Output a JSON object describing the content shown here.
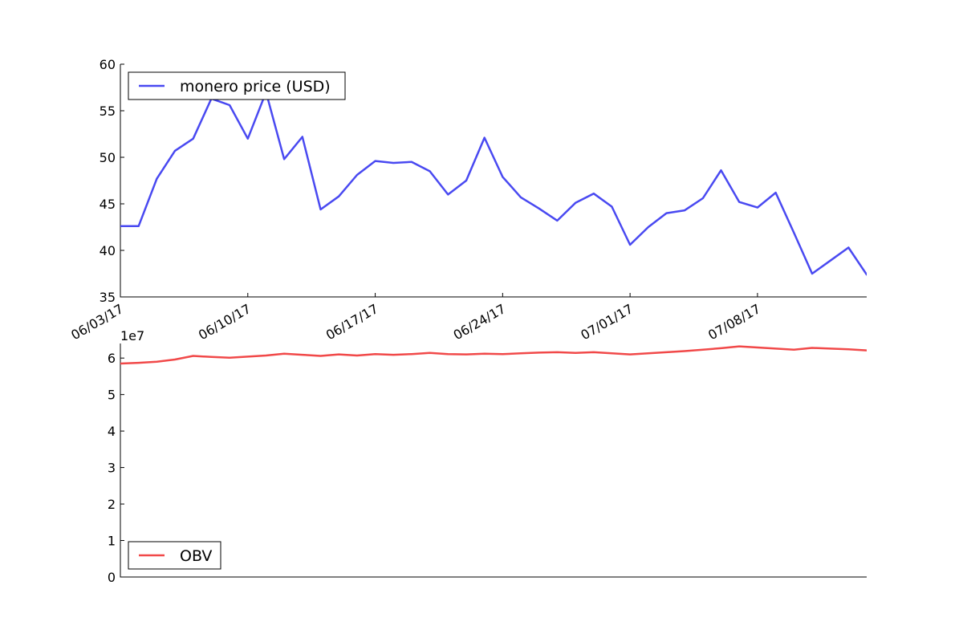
{
  "chart_data": [
    {
      "type": "line",
      "title": "",
      "xlabel": "",
      "ylabel": "",
      "x_format": "MM/DD/YY",
      "x_ticks": [
        "06/03/17",
        "06/10/17",
        "06/17/17",
        "06/24/17",
        "07/01/17",
        "07/08/17"
      ],
      "xlim": [
        "06/03/17",
        "07/14/17"
      ],
      "ylim": [
        35,
        60
      ],
      "y_ticks": [
        35,
        40,
        45,
        50,
        55,
        60
      ],
      "grid": false,
      "legend_placement": "top-left",
      "series": [
        {
          "name": "monero price (USD)",
          "color": "#4949f1",
          "x": [
            "06/03/17",
            "06/04/17",
            "06/05/17",
            "06/06/17",
            "06/07/17",
            "06/08/17",
            "06/09/17",
            "06/10/17",
            "06/11/17",
            "06/12/17",
            "06/13/17",
            "06/14/17",
            "06/15/17",
            "06/16/17",
            "06/17/17",
            "06/18/17",
            "06/19/17",
            "06/20/17",
            "06/21/17",
            "06/22/17",
            "06/23/17",
            "06/24/17",
            "06/25/17",
            "06/26/17",
            "06/27/17",
            "06/28/17",
            "06/29/17",
            "06/30/17",
            "07/01/17",
            "07/02/17",
            "07/03/17",
            "07/04/17",
            "07/05/17",
            "07/06/17",
            "07/07/17",
            "07/08/17",
            "07/09/17",
            "07/10/17",
            "07/11/17",
            "07/12/17",
            "07/13/17",
            "07/14/17"
          ],
          "values": [
            42.6,
            42.6,
            47.7,
            50.7,
            52.0,
            56.3,
            55.6,
            52.0,
            57.0,
            49.8,
            52.2,
            44.4,
            45.8,
            48.1,
            49.6,
            49.4,
            49.5,
            48.5,
            46.0,
            47.5,
            52.1,
            47.9,
            45.7,
            44.5,
            43.2,
            45.1,
            46.1,
            44.7,
            40.6,
            42.5,
            44.0,
            44.3,
            45.6,
            48.6,
            45.2,
            44.6,
            46.2,
            41.9,
            37.5,
            38.9,
            40.3,
            37.4
          ]
        }
      ]
    },
    {
      "type": "line",
      "title": "",
      "xlabel": "",
      "ylabel": "",
      "y_offset_label": "1e7",
      "ylim": [
        0,
        6.4
      ],
      "y_ticks": [
        0,
        1,
        2,
        3,
        4,
        5,
        6
      ],
      "grid": false,
      "legend_placement": "bottom-left",
      "series": [
        {
          "name": "OBV",
          "color": "#f14949",
          "x": [
            "06/03/17",
            "06/04/17",
            "06/05/17",
            "06/06/17",
            "06/07/17",
            "06/08/17",
            "06/09/17",
            "06/10/17",
            "06/11/17",
            "06/12/17",
            "06/13/17",
            "06/14/17",
            "06/15/17",
            "06/16/17",
            "06/17/17",
            "06/18/17",
            "06/19/17",
            "06/20/17",
            "06/21/17",
            "06/22/17",
            "06/23/17",
            "06/24/17",
            "06/25/17",
            "06/26/17",
            "06/27/17",
            "06/28/17",
            "06/29/17",
            "06/30/17",
            "07/01/17",
            "07/02/17",
            "07/03/17",
            "07/04/17",
            "07/05/17",
            "07/06/17",
            "07/07/17",
            "07/08/17",
            "07/09/17",
            "07/10/17",
            "07/11/17",
            "07/12/17",
            "07/13/17",
            "07/14/17"
          ],
          "values": [
            5.85,
            5.87,
            5.9,
            5.96,
            6.06,
            6.03,
            6.01,
            6.04,
            6.07,
            6.12,
            6.09,
            6.06,
            6.1,
            6.07,
            6.11,
            6.09,
            6.11,
            6.14,
            6.11,
            6.1,
            6.12,
            6.11,
            6.13,
            6.15,
            6.16,
            6.14,
            6.16,
            6.13,
            6.1,
            6.13,
            6.16,
            6.19,
            6.23,
            6.27,
            6.32,
            6.29,
            6.26,
            6.23,
            6.28,
            6.26,
            6.24,
            6.21
          ]
        }
      ]
    }
  ]
}
